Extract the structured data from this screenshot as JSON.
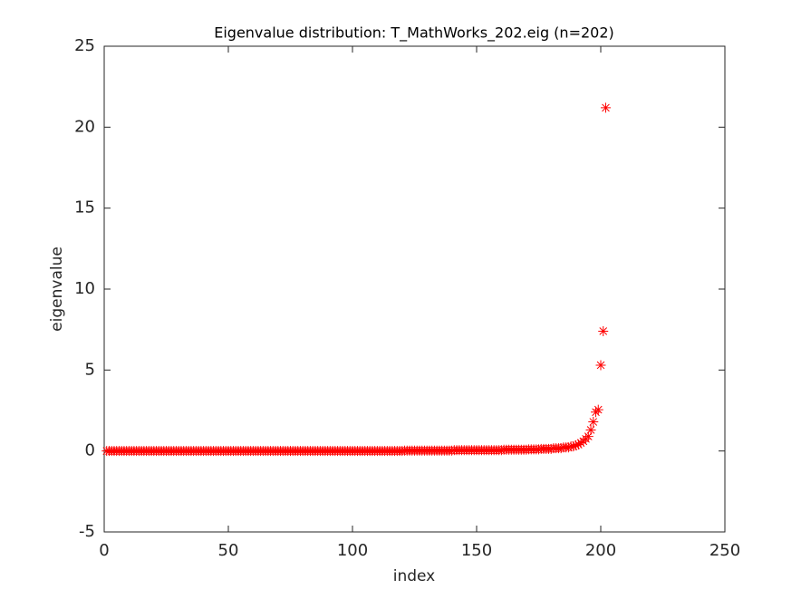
{
  "chart_data": {
    "type": "scatter",
    "title": "Eigenvalue distribution: T_MathWorks_202.eig (n=202)",
    "x_label": "index",
    "y_label": "eigenvalue",
    "marker": "asterisk",
    "color": "#ff0000",
    "xlim": [
      0,
      250
    ],
    "xticks": [
      0,
      50,
      100,
      150,
      200,
      250
    ],
    "ylim": [
      -5,
      25
    ],
    "yticks": [
      -5,
      0,
      5,
      10,
      15,
      20,
      25
    ],
    "x": [
      1,
      2,
      3,
      4,
      5,
      6,
      7,
      8,
      9,
      10,
      11,
      12,
      13,
      14,
      15,
      16,
      17,
      18,
      19,
      20,
      21,
      22,
      23,
      24,
      25,
      26,
      27,
      28,
      29,
      30,
      31,
      32,
      33,
      34,
      35,
      36,
      37,
      38,
      39,
      40,
      41,
      42,
      43,
      44,
      45,
      46,
      47,
      48,
      49,
      50,
      51,
      52,
      53,
      54,
      55,
      56,
      57,
      58,
      59,
      60,
      61,
      62,
      63,
      64,
      65,
      66,
      67,
      68,
      69,
      70,
      71,
      72,
      73,
      74,
      75,
      76,
      77,
      78,
      79,
      80,
      81,
      82,
      83,
      84,
      85,
      86,
      87,
      88,
      89,
      90,
      91,
      92,
      93,
      94,
      95,
      96,
      97,
      98,
      99,
      100,
      101,
      102,
      103,
      104,
      105,
      106,
      107,
      108,
      109,
      110,
      111,
      112,
      113,
      114,
      115,
      116,
      117,
      118,
      119,
      120,
      121,
      122,
      123,
      124,
      125,
      126,
      127,
      128,
      129,
      130,
      131,
      132,
      133,
      134,
      135,
      136,
      137,
      138,
      139,
      140,
      141,
      142,
      143,
      144,
      145,
      146,
      147,
      148,
      149,
      150,
      151,
      152,
      153,
      154,
      155,
      156,
      157,
      158,
      159,
      160,
      161,
      162,
      163,
      164,
      165,
      166,
      167,
      168,
      169,
      170,
      171,
      172,
      173,
      174,
      175,
      176,
      177,
      178,
      179,
      180,
      181,
      182,
      183,
      184,
      185,
      186,
      187,
      188,
      189,
      190,
      191,
      192,
      193,
      194,
      195,
      196,
      197,
      198,
      199,
      200,
      201,
      202
    ],
    "values": [
      0,
      0,
      0,
      0,
      0,
      0,
      0,
      0,
      0,
      0,
      0,
      0,
      0,
      0,
      0,
      0,
      0,
      0,
      0,
      0,
      0,
      0,
      0,
      0,
      0,
      0,
      0,
      0,
      0,
      0,
      0,
      0,
      0,
      0,
      0,
      0,
      0,
      0,
      0,
      0,
      0,
      0,
      0,
      0,
      0,
      0,
      0,
      0,
      0,
      0,
      0,
      0,
      0,
      0,
      0,
      0,
      0,
      0,
      0,
      0,
      0,
      0,
      0,
      0,
      0,
      0,
      0,
      0,
      0,
      0,
      0,
      0,
      0,
      0,
      0,
      0,
      0,
      0,
      0,
      0,
      0,
      0,
      0,
      0,
      0,
      0,
      0,
      0,
      0,
      0,
      0,
      0,
      0,
      0,
      0,
      0,
      0,
      0,
      0,
      0,
      0,
      0,
      0,
      0,
      0,
      0,
      0,
      0,
      0,
      0,
      0,
      0,
      0,
      0,
      0,
      0,
      0,
      0,
      0,
      0,
      0.02,
      0.02,
      0.02,
      0.02,
      0.02,
      0.02,
      0.02,
      0.02,
      0.02,
      0.02,
      0.02,
      0.02,
      0.02,
      0.02,
      0.02,
      0.02,
      0.02,
      0.02,
      0.02,
      0.02,
      0.05,
      0.05,
      0.05,
      0.05,
      0.05,
      0.05,
      0.05,
      0.05,
      0.05,
      0.05,
      0.05,
      0.05,
      0.05,
      0.05,
      0.05,
      0.05,
      0.05,
      0.05,
      0.05,
      0.05,
      0.08,
      0.08,
      0.08,
      0.08,
      0.08,
      0.08,
      0.08,
      0.08,
      0.08,
      0.08,
      0.1,
      0.1,
      0.1,
      0.1,
      0.1,
      0.13,
      0.13,
      0.13,
      0.13,
      0.13,
      0.17,
      0.17,
      0.17,
      0.17,
      0.22,
      0.22,
      0.22,
      0.28,
      0.28,
      0.35,
      0.4,
      0.5,
      0.6,
      0.75,
      0.9,
      1.3,
      1.8,
      2.4,
      2.55,
      5.3,
      7.4,
      21.2
    ]
  }
}
